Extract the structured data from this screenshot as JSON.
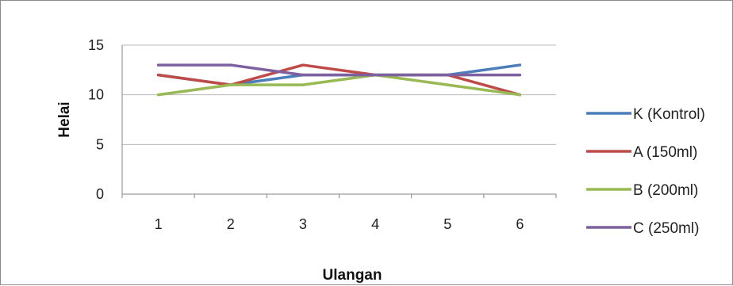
{
  "chart_data": {
    "type": "line",
    "title": "",
    "xlabel": "Ulangan",
    "ylabel": "Helai",
    "categories": [
      "1",
      "2",
      "3",
      "4",
      "5",
      "6"
    ],
    "ylim": [
      0,
      15
    ],
    "yticks": [
      "0",
      "5",
      "10",
      "15"
    ],
    "grid": true,
    "legend_position": "right",
    "series": [
      {
        "name": "K (Kontrol)",
        "color": "#4a7ebb",
        "values": [
          12,
          11,
          12,
          12,
          12,
          13
        ]
      },
      {
        "name": "A (150ml)",
        "color": "#be4b48",
        "values": [
          12,
          11,
          13,
          12,
          12,
          10
        ]
      },
      {
        "name": "B (200ml)",
        "color": "#98b954",
        "values": [
          10,
          11,
          11,
          12,
          11,
          10
        ]
      },
      {
        "name": "C (250ml)",
        "color": "#7d60a0",
        "values": [
          13,
          13,
          12,
          12,
          12,
          12
        ]
      }
    ]
  }
}
